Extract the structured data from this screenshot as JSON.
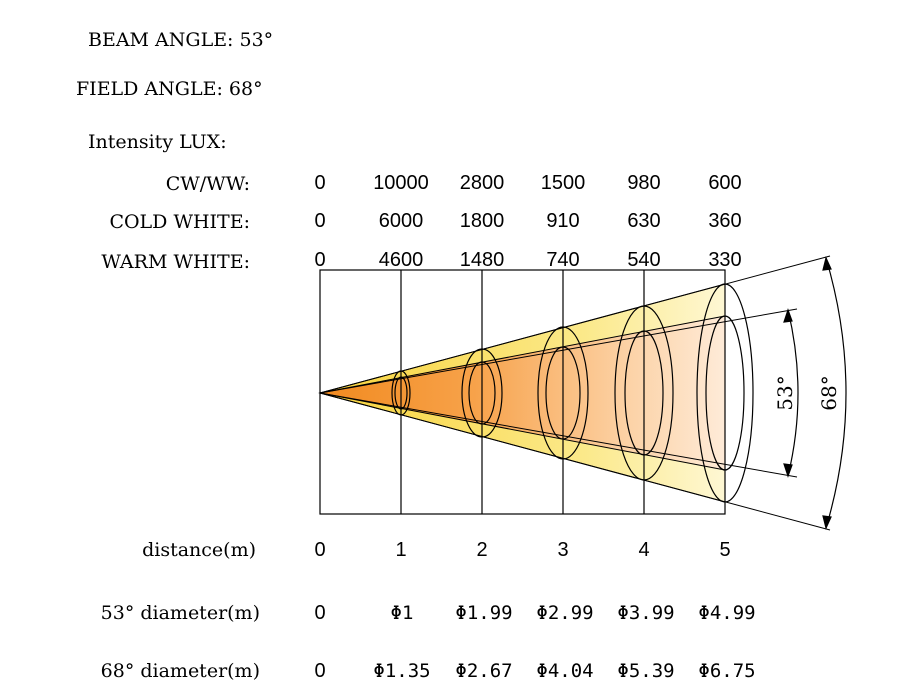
{
  "header": {
    "beam_angle": "BEAM ANGLE: 53°",
    "field_angle": "FIELD ANGLE: 68°",
    "intensity_title": "Intensity LUX:"
  },
  "intensity": {
    "rows": [
      {
        "label": "CW/WW:",
        "values": [
          "0",
          "10000",
          "2800",
          "1500",
          "980",
          "600"
        ]
      },
      {
        "label": "COLD WHITE:",
        "values": [
          "0",
          "6000",
          "1800",
          "910",
          "630",
          "360"
        ]
      },
      {
        "label": "WARM WHITE:",
        "values": [
          "0",
          "4600",
          "1480",
          "740",
          "540",
          "330"
        ]
      }
    ]
  },
  "distance": {
    "label": "distance(m)",
    "values": [
      "0",
      "1",
      "2",
      "3",
      "4",
      "5"
    ]
  },
  "diameter_53": {
    "label": "53° diameter(m)",
    "values": [
      "0",
      "Φ1",
      "Φ1.99",
      "Φ2.99",
      "Φ3.99",
      "Φ4.99"
    ]
  },
  "diameter_68": {
    "label": "68° diameter(m)",
    "values": [
      "0",
      "Φ1.35",
      "Φ2.67",
      "Φ4.04",
      "Φ5.39",
      "Φ6.75"
    ]
  },
  "angle_markers": {
    "beam": "53°",
    "field": "68°"
  },
  "colors": {
    "beam_core": "#f7a13a",
    "beam_edge": "#fde3b8",
    "field_cone": "#fbe46a",
    "line": "#000000"
  }
}
